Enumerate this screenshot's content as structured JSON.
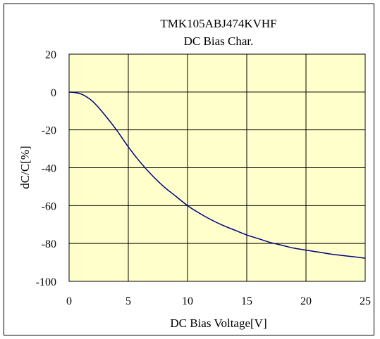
{
  "chart_data": {
    "type": "line",
    "title": "TMK105ABJ474KVHF",
    "subtitle": "DC Bias Char.",
    "xlabel": "DC Bias Voltage[V]",
    "ylabel": "dC/C[%]",
    "xlim": [
      0,
      25
    ],
    "ylim": [
      -100,
      20
    ],
    "x_ticks": [
      0,
      5,
      10,
      15,
      20,
      25
    ],
    "y_ticks": [
      20,
      0,
      -20,
      -40,
      -60,
      -80,
      -100
    ],
    "grid": true,
    "colors": {
      "plot_bg": "#ffffcc",
      "line": "#000080",
      "grid": "#000000"
    },
    "series": [
      {
        "x": [
          0,
          1,
          2,
          3,
          4,
          5,
          6,
          7,
          8,
          9,
          10,
          11,
          12,
          13,
          14,
          15,
          16,
          17,
          18,
          19,
          20,
          21,
          22,
          23,
          24,
          25
        ],
        "values": [
          0,
          -1,
          -5,
          -12,
          -20,
          -29,
          -37,
          -44,
          -50,
          -55,
          -60,
          -64,
          -67.5,
          -70.5,
          -73,
          -75.5,
          -77.5,
          -79.5,
          -81,
          -82.5,
          -83.5,
          -84.5,
          -85.5,
          -86.3,
          -87,
          -87.8
        ]
      }
    ]
  }
}
